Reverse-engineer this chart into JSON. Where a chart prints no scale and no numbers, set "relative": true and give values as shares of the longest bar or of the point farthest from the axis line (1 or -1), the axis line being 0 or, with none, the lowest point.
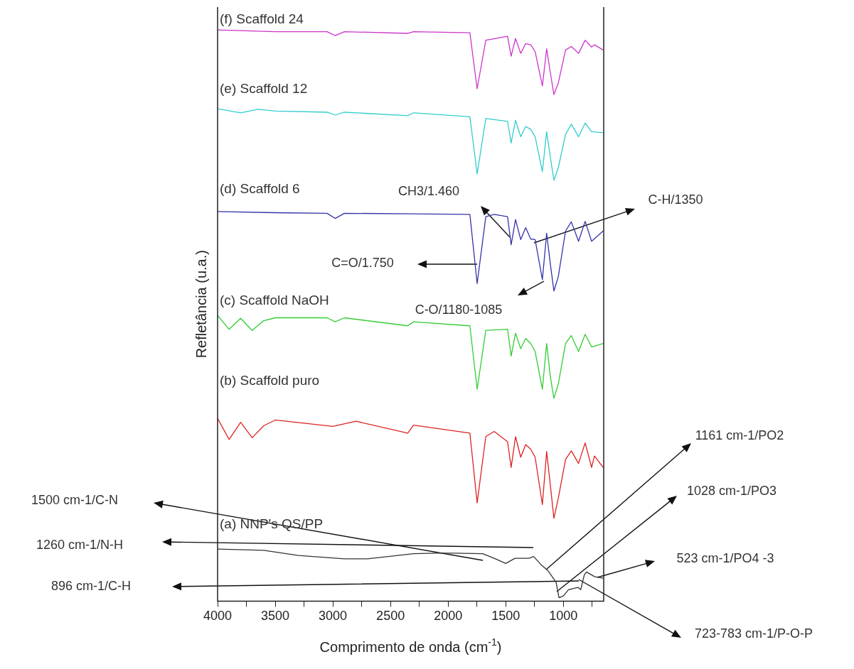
{
  "chart_data": {
    "type": "line",
    "relative": true,
    "xlabel": "Comprimento de onda (cm$^{-1}$)",
    "ylabel": "Refletância (u.a.)",
    "xlim": [
      4000,
      650
    ],
    "xticks": [
      4000,
      {
        "value": 3750,
        "label": null
      },
      3500,
      {
        "value": 3250,
        "label": null
      },
      3000,
      {
        "value": 2750,
        "label": null
      },
      2500,
      {
        "value": 2250,
        "label": null
      },
      2000,
      {
        "value": 1750,
        "label": null
      },
      1500,
      {
        "value": 1250,
        "label": null
      },
      1000,
      {
        "value": 750,
        "label": null
      }
    ],
    "series": [
      {
        "name": "(a) NNP's QS/PP",
        "color": "#333333",
        "x": [
          4000,
          3600,
          3300,
          2900,
          2700,
          2300,
          2100,
          1950,
          1700,
          1600,
          1500,
          1420,
          1300,
          1258,
          1195,
          1132,
          1063,
          1038,
          1000,
          956,
          874,
          850,
          818,
          799,
          730,
          655
        ],
        "values": [
          0.091,
          0.089,
          0.08,
          0.074,
          0.074,
          0.083,
          0.084,
          0.084,
          0.083,
          0.075,
          0.066,
          0.075,
          0.075,
          0.078,
          0.064,
          0.053,
          0.033,
          0.006,
          0.009,
          0.02,
          0.024,
          0.02,
          0.046,
          0.051,
          0.043,
          0.04
        ]
      },
      {
        "name": "(b) Scaffold puro",
        "color": "#dd2222",
        "x": [
          4000,
          3900,
          3800,
          3700,
          3600,
          3500,
          3000,
          2800,
          2350,
          2300,
          1811,
          1748,
          1673,
          1600,
          1484,
          1453,
          1415,
          1370,
          1327,
          1283,
          1245,
          1182,
          1145,
          1113,
          1082,
          1044,
          981,
          931,
          868,
          811,
          755,
          730,
          655
        ],
        "values": [
          0.32,
          0.283,
          0.313,
          0.286,
          0.307,
          0.317,
          0.306,
          0.315,
          0.294,
          0.308,
          0.294,
          0.172,
          0.288,
          0.297,
          0.279,
          0.234,
          0.288,
          0.252,
          0.274,
          0.266,
          0.252,
          0.169,
          0.262,
          0.203,
          0.145,
          0.18,
          0.248,
          0.263,
          0.241,
          0.277,
          0.234,
          0.254,
          0.234
        ]
      },
      {
        "name": "(c) Scaffold NaOH",
        "color": "#33cc33",
        "x": [
          4000,
          3900,
          3800,
          3700,
          3600,
          3500,
          3050,
          2980,
          2900,
          2350,
          2300,
          1811,
          1748,
          1673,
          1484,
          1453,
          1415,
          1370,
          1327,
          1283,
          1245,
          1182,
          1145,
          1113,
          1082,
          1044,
          981,
          931,
          868,
          811,
          755,
          655
        ],
        "values": [
          0.5,
          0.476,
          0.495,
          0.474,
          0.491,
          0.496,
          0.496,
          0.489,
          0.496,
          0.482,
          0.489,
          0.482,
          0.371,
          0.474,
          0.476,
          0.429,
          0.469,
          0.442,
          0.46,
          0.451,
          0.437,
          0.371,
          0.451,
          0.393,
          0.355,
          0.38,
          0.451,
          0.465,
          0.437,
          0.467,
          0.445,
          0.451
        ]
      },
      {
        "name": "(d) Scaffold 6",
        "color": "#3333aa",
        "x": [
          4000,
          3500,
          3050,
          2980,
          2900,
          2300,
          1811,
          1748,
          1673,
          1600,
          1484,
          1453,
          1415,
          1370,
          1327,
          1283,
          1245,
          1182,
          1145,
          1113,
          1082,
          1044,
          981,
          931,
          868,
          811,
          755,
          655
        ],
        "values": [
          0.682,
          0.68,
          0.679,
          0.67,
          0.679,
          0.678,
          0.677,
          0.556,
          0.673,
          0.677,
          0.673,
          0.624,
          0.668,
          0.633,
          0.654,
          0.634,
          0.633,
          0.563,
          0.644,
          0.59,
          0.543,
          0.568,
          0.648,
          0.664,
          0.63,
          0.665,
          0.63,
          0.648
        ]
      },
      {
        "name": "(e) Scaffold 12",
        "color": "#33cccc",
        "x": [
          4000,
          3800,
          3650,
          3500,
          3050,
          2980,
          2900,
          2350,
          2300,
          1811,
          1748,
          1673,
          1484,
          1453,
          1415,
          1370,
          1327,
          1283,
          1245,
          1182,
          1145,
          1113,
          1082,
          1044,
          981,
          931,
          868,
          811,
          755,
          655
        ],
        "values": [
          0.862,
          0.855,
          0.861,
          0.858,
          0.856,
          0.851,
          0.856,
          0.85,
          0.855,
          0.848,
          0.748,
          0.845,
          0.84,
          0.802,
          0.842,
          0.813,
          0.831,
          0.826,
          0.813,
          0.752,
          0.822,
          0.777,
          0.737,
          0.759,
          0.817,
          0.835,
          0.813,
          0.837,
          0.822,
          0.82
        ]
      },
      {
        "name": "(f) Scaffold 24",
        "color": "#cc33cc",
        "x": [
          4000,
          3500,
          3050,
          2980,
          2900,
          2350,
          2300,
          1811,
          1748,
          1673,
          1484,
          1453,
          1415,
          1370,
          1327,
          1283,
          1245,
          1182,
          1145,
          1113,
          1082,
          1044,
          981,
          931,
          868,
          811,
          755,
          730,
          655
        ],
        "values": [
          1,
          0.997,
          0.997,
          0.99,
          0.997,
          0.994,
          0.997,
          0.995,
          0.897,
          0.982,
          0.989,
          0.954,
          0.985,
          0.959,
          0.976,
          0.974,
          0.962,
          0.902,
          0.967,
          0.925,
          0.887,
          0.907,
          0.965,
          0.971,
          0.959,
          0.982,
          0.97,
          0.974,
          0.965
        ]
      }
    ],
    "annotations": [
      "CH3/1.460",
      "C-H/1350",
      "C=O/1.750",
      "C-O/1180-1085",
      "1500 cm-1/C-N",
      "1260 cm-1/N-H",
      "896 cm-1/C-H",
      "1161 cm-1/PO2",
      "1028 cm-1/PO3",
      "523 cm-1/PO4 -3",
      "723-783 cm-1/P-O-P"
    ]
  }
}
